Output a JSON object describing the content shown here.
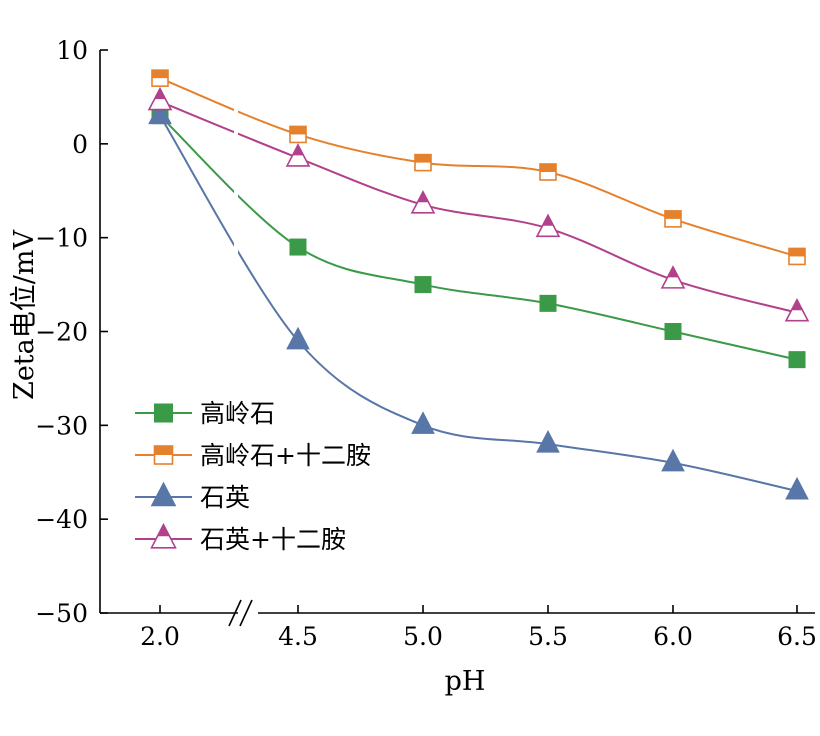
{
  "chart_data": {
    "type": "line",
    "title": "",
    "xlabel": "pH",
    "ylabel": "Zeta电位/mV",
    "x_ticks": [
      "2.0",
      "4.5",
      "5.0",
      "5.5",
      "6.0",
      "6.5"
    ],
    "x_values": [
      2.0,
      4.5,
      5.0,
      5.5,
      6.0,
      6.5
    ],
    "x_axis_break": "between 2.0 and 4.5",
    "y_ticks": [
      "10",
      "0",
      "-10",
      "-20",
      "-30",
      "-40",
      "-50"
    ],
    "ylim": [
      -50,
      10
    ],
    "grid": false,
    "legend_position": "lower-left",
    "series": [
      {
        "name": "高岭石",
        "marker": "filled-square",
        "color": "#3a9a47",
        "values": [
          3,
          -11,
          -15,
          -17,
          -20,
          -23
        ]
      },
      {
        "name": "高岭石+十二胺",
        "marker": "half-filled-square",
        "color": "#e5812c",
        "values": [
          7,
          1,
          -2,
          -3,
          -8,
          -12
        ]
      },
      {
        "name": "石英",
        "marker": "filled-triangle",
        "color": "#5876a8",
        "values": [
          3,
          -21,
          -30,
          -32,
          -34,
          -37
        ]
      },
      {
        "name": "石英+十二胺",
        "marker": "half-filled-triangle",
        "color": "#b2418c",
        "values": [
          4.5,
          -1.5,
          -6.5,
          -9,
          -14.5,
          -18
        ]
      }
    ]
  }
}
